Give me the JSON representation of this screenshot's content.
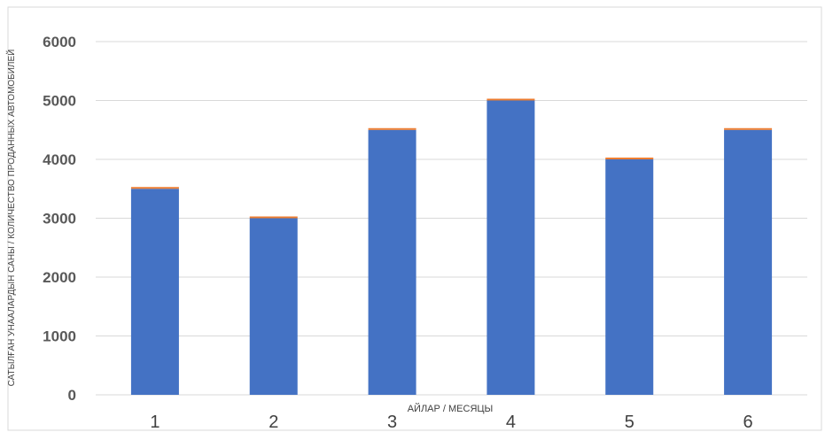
{
  "chart_data": {
    "type": "bar",
    "categories": [
      "1",
      "2",
      "3",
      "4",
      "5",
      "6"
    ],
    "series": [
      {
        "values": [
          3500,
          3000,
          4500,
          5000,
          4000,
          4500
        ],
        "color": "#4472C4"
      },
      {
        "values": [
          30,
          30,
          30,
          30,
          30,
          30
        ],
        "color": "#ED7D31"
      }
    ],
    "title": "",
    "xlabel": "АЙЛАР / МЕСЯЦЫ",
    "ylabel": "САТЫЛҒАН УНААЛАРДЫН САНЫ / КОЛИЧЕСТВО ПРОДАННЫХ АВТОМОБИЛЕЙ",
    "ylim": [
      0,
      6000
    ],
    "yticks": [
      "0",
      "1000",
      "2000",
      "3000",
      "4000",
      "5000",
      "6000"
    ],
    "stacked": true,
    "grid": true,
    "legend": "none"
  }
}
